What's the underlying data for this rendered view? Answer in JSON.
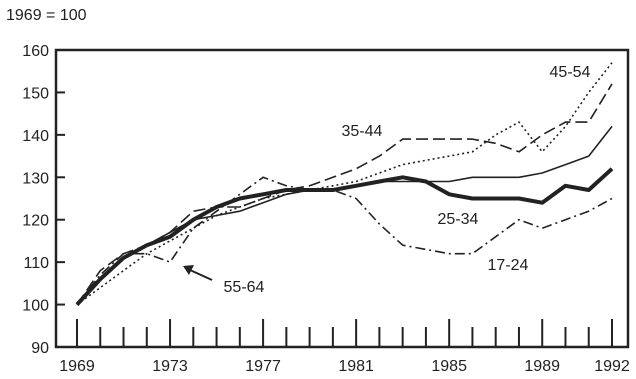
{
  "chart_data": {
    "type": "line",
    "index_label": "1969 = 100",
    "x_ticks": [
      "1969",
      "1973",
      "1977",
      "1981",
      "1985",
      "1989",
      "1992"
    ],
    "xlim": [
      1969,
      1992
    ],
    "ylim": [
      90,
      160
    ],
    "y_ticks": [
      90,
      100,
      110,
      120,
      130,
      140,
      150,
      160
    ],
    "grid": false,
    "series": [
      {
        "name": "17-24",
        "style": "dash-dot",
        "points": [
          [
            1969,
            100
          ],
          [
            1970,
            107
          ],
          [
            1971,
            112
          ],
          [
            1972,
            112
          ],
          [
            1973,
            110
          ],
          [
            1974,
            118
          ],
          [
            1975,
            122
          ],
          [
            1976,
            126
          ],
          [
            1977,
            130
          ],
          [
            1978,
            128
          ],
          [
            1979,
            127
          ],
          [
            1980,
            127
          ],
          [
            1981,
            125
          ],
          [
            1982,
            119
          ],
          [
            1983,
            114
          ],
          [
            1984,
            113
          ],
          [
            1985,
            112
          ],
          [
            1986,
            112
          ],
          [
            1987,
            116
          ],
          [
            1988,
            120
          ],
          [
            1989,
            118
          ],
          [
            1990,
            120
          ],
          [
            1991,
            122
          ],
          [
            1992,
            125
          ]
        ]
      },
      {
        "name": "25-34",
        "style": "thin-solid",
        "points": [
          [
            1969,
            100
          ],
          [
            1970,
            106
          ],
          [
            1971,
            111
          ],
          [
            1972,
            114
          ],
          [
            1973,
            117
          ],
          [
            1974,
            120
          ],
          [
            1975,
            121
          ],
          [
            1976,
            122
          ],
          [
            1977,
            124
          ],
          [
            1978,
            126
          ],
          [
            1979,
            127
          ],
          [
            1980,
            127
          ],
          [
            1981,
            128
          ],
          [
            1982,
            129
          ],
          [
            1983,
            129
          ],
          [
            1984,
            129
          ],
          [
            1985,
            129
          ],
          [
            1986,
            130
          ],
          [
            1987,
            130
          ],
          [
            1988,
            130
          ],
          [
            1989,
            131
          ],
          [
            1990,
            133
          ],
          [
            1991,
            135
          ],
          [
            1992,
            142
          ]
        ]
      },
      {
        "name": "35-44",
        "style": "dashed",
        "points": [
          [
            1969,
            100
          ],
          [
            1970,
            108
          ],
          [
            1971,
            112
          ],
          [
            1972,
            114
          ],
          [
            1973,
            117
          ],
          [
            1974,
            122
          ],
          [
            1975,
            123
          ],
          [
            1976,
            123
          ],
          [
            1977,
            125
          ],
          [
            1978,
            127
          ],
          [
            1979,
            128
          ],
          [
            1980,
            130
          ],
          [
            1981,
            132
          ],
          [
            1982,
            135
          ],
          [
            1983,
            139
          ],
          [
            1984,
            139
          ],
          [
            1985,
            139
          ],
          [
            1986,
            139
          ],
          [
            1987,
            138
          ],
          [
            1988,
            136
          ],
          [
            1989,
            140
          ],
          [
            1990,
            143
          ],
          [
            1991,
            143
          ],
          [
            1992,
            152
          ]
        ]
      },
      {
        "name": "45-54",
        "style": "dotted",
        "points": [
          [
            1969,
            100
          ],
          [
            1970,
            104
          ],
          [
            1971,
            108
          ],
          [
            1972,
            112
          ],
          [
            1973,
            115
          ],
          [
            1974,
            118
          ],
          [
            1975,
            121
          ],
          [
            1976,
            123
          ],
          [
            1977,
            125
          ],
          [
            1978,
            126
          ],
          [
            1979,
            127
          ],
          [
            1980,
            128
          ],
          [
            1981,
            129
          ],
          [
            1982,
            131
          ],
          [
            1983,
            133
          ],
          [
            1984,
            134
          ],
          [
            1985,
            135
          ],
          [
            1986,
            136
          ],
          [
            1987,
            140
          ],
          [
            1988,
            143
          ],
          [
            1989,
            136
          ],
          [
            1990,
            142
          ],
          [
            1991,
            150
          ],
          [
            1992,
            157
          ]
        ]
      },
      {
        "name": "55-64",
        "style": "thick-solid",
        "points": [
          [
            1969,
            100
          ],
          [
            1970,
            106
          ],
          [
            1971,
            111
          ],
          [
            1972,
            114
          ],
          [
            1973,
            116
          ],
          [
            1974,
            120
          ],
          [
            1975,
            123
          ],
          [
            1976,
            125
          ],
          [
            1977,
            126
          ],
          [
            1978,
            127
          ],
          [
            1979,
            127
          ],
          [
            1980,
            127
          ],
          [
            1981,
            128
          ],
          [
            1982,
            129
          ],
          [
            1983,
            130
          ],
          [
            1984,
            129
          ],
          [
            1985,
            126
          ],
          [
            1986,
            125
          ],
          [
            1987,
            125
          ],
          [
            1988,
            125
          ],
          [
            1989,
            124
          ],
          [
            1990,
            128
          ],
          [
            1991,
            127
          ],
          [
            1992,
            132
          ]
        ]
      }
    ]
  }
}
